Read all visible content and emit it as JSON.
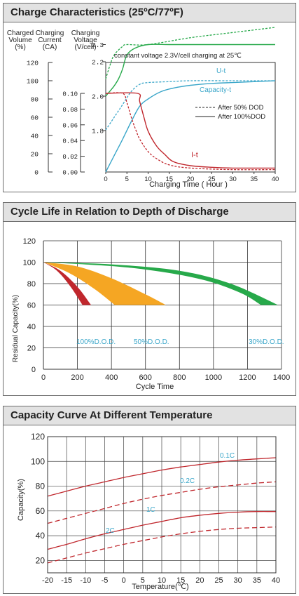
{
  "panels": [
    {
      "title": "Charge Characteristics (25ºC/77ºF)"
    },
    {
      "title": "Cycle Life in Relation to Depth of Discharge"
    },
    {
      "title": "Capacity Curve At Different Temperature"
    }
  ],
  "colors": {
    "green": "#27a94a",
    "teal": "#3aa6c9",
    "red": "#c0272d",
    "orange": "#f5a623",
    "grid": "#333333",
    "dgreen": "#2f8f4e"
  },
  "chart_data": [
    {
      "type": "line",
      "xlabel": "Charging Time ( Hour )",
      "note": "constant voltage 2.3V/cell charging at 25℃",
      "axis_headers": {
        "volume": [
          "Charged",
          "Volume",
          "(%)"
        ],
        "current": [
          "Charging",
          "Current",
          "(CA)"
        ],
        "voltage": [
          "Charging",
          "Voltage",
          "(V/cell)"
        ]
      },
      "x_ticks": [
        "0",
        "5",
        "10",
        "15",
        "20",
        "25",
        "30",
        "35",
        "40"
      ],
      "xlim": [
        0,
        40
      ],
      "volume_ticks": [
        "120",
        "100",
        "80",
        "60",
        "40",
        "20",
        "0"
      ],
      "current_ticks": [
        "0.10",
        "0.08",
        "0.06",
        "0.04",
        "0.02",
        "0.00"
      ],
      "voltage_ticks": [
        "2.3",
        "2.2",
        "2.0",
        "1.8"
      ],
      "curve_labels": {
        "ut": "U-t",
        "capacity": "Capacity-t",
        "it": "I-t"
      },
      "legend": {
        "dashed": "After 50% DOD",
        "solid": "After 100%DOD"
      },
      "series": [
        {
          "name": "U-t",
          "style": "solid",
          "x": [
            0,
            1,
            2,
            3,
            4,
            5,
            7,
            10,
            15,
            20,
            30,
            40
          ],
          "y": [
            2.0,
            2.03,
            2.06,
            2.1,
            2.16,
            2.24,
            2.28,
            2.3,
            2.3,
            2.3,
            2.3,
            2.3
          ]
        },
        {
          "name": "U-t",
          "style": "dashed",
          "x": [
            0,
            1,
            2,
            4,
            5,
            10,
            20,
            30,
            40
          ],
          "y": [
            2.1,
            2.18,
            2.24,
            2.29,
            2.3,
            2.3,
            2.34,
            2.37,
            2.4
          ]
        },
        {
          "name": "Capacity-t",
          "style": "solid",
          "x": [
            0,
            2,
            4,
            6,
            8,
            10,
            13,
            16,
            20,
            25,
            30,
            35,
            40
          ],
          "y": [
            0,
            18,
            36,
            55,
            72,
            80,
            88,
            92,
            95,
            97,
            98,
            99,
            100
          ]
        },
        {
          "name": "Capacity-t",
          "style": "dashed",
          "x": [
            0,
            2,
            4,
            6,
            8,
            10,
            15,
            20,
            30,
            40
          ],
          "y": [
            46,
            60,
            74,
            88,
            96,
            98,
            99,
            100,
            100,
            100
          ]
        },
        {
          "name": "I-t",
          "style": "solid",
          "x": [
            0,
            7.5,
            8,
            9,
            10,
            12,
            14,
            16,
            20,
            25,
            30,
            35,
            40
          ],
          "y": [
            0.1,
            0.1,
            0.09,
            0.07,
            0.052,
            0.033,
            0.022,
            0.013,
            0.008,
            0.006,
            0.005,
            0.005,
            0.005
          ]
        },
        {
          "name": "I-t",
          "style": "dashed",
          "x": [
            0,
            4,
            5,
            6,
            7,
            8,
            10,
            12,
            15,
            20,
            30,
            40
          ],
          "y": [
            0.1,
            0.1,
            0.088,
            0.07,
            0.055,
            0.042,
            0.026,
            0.017,
            0.009,
            0.005,
            0.003,
            0.003
          ]
        }
      ]
    },
    {
      "type": "area",
      "xlabel": "Cycle Time",
      "ylabel": "Residual Capacity(%)",
      "x_ticks": [
        0,
        200,
        400,
        600,
        800,
        1000,
        1200,
        1400
      ],
      "y_ticks": [
        0,
        20,
        40,
        60,
        80,
        100,
        120
      ],
      "xlim": [
        0,
        1400
      ],
      "ylim": [
        0,
        120
      ],
      "series": [
        {
          "name": "100%D.O.D.",
          "upper": [
            [
              0,
              100
            ],
            [
              100,
              92
            ],
            [
              200,
              77
            ],
            [
              280,
              60
            ]
          ],
          "lower": [
            [
              0,
              100
            ],
            [
              80,
              92
            ],
            [
              160,
              77
            ],
            [
              230,
              60
            ]
          ]
        },
        {
          "name": "50%D.O.D.",
          "upper": [
            [
              0,
              100
            ],
            [
              200,
              96
            ],
            [
              400,
              85
            ],
            [
              600,
              70
            ],
            [
              720,
              60
            ]
          ],
          "lower": [
            [
              0,
              100
            ],
            [
              150,
              90
            ],
            [
              300,
              75
            ],
            [
              420,
              60
            ]
          ]
        },
        {
          "name": "30%D.O.D.",
          "upper": [
            [
              0,
              100
            ],
            [
              400,
              98
            ],
            [
              800,
              92
            ],
            [
              1100,
              80
            ],
            [
              1380,
              60
            ]
          ],
          "lower": [
            [
              0,
              100
            ],
            [
              500,
              95
            ],
            [
              900,
              85
            ],
            [
              1150,
              72
            ],
            [
              1280,
              60
            ]
          ]
        }
      ]
    },
    {
      "type": "line",
      "xlabel": "Temperature(℃)",
      "ylabel": "Capacity(%)",
      "x_ticks": [
        -20,
        -15,
        -10,
        -5,
        0,
        5,
        10,
        15,
        20,
        25,
        30,
        35,
        40
      ],
      "y_ticks": [
        20,
        40,
        60,
        80,
        100,
        120
      ],
      "xlim": [
        -20,
        40
      ],
      "ylim": [
        10,
        120
      ],
      "series": [
        {
          "name": "0.1C",
          "style": "solid",
          "x": [
            -20,
            -15,
            -10,
            -5,
            0,
            5,
            10,
            15,
            20,
            25,
            30,
            35,
            40
          ],
          "y": [
            72,
            76,
            80,
            83.5,
            87,
            90,
            93,
            95.5,
            97.5,
            99.5,
            101,
            102,
            103
          ]
        },
        {
          "name": "0.2C",
          "style": "dashed",
          "x": [
            -20,
            -15,
            -10,
            -5,
            0,
            5,
            10,
            15,
            20,
            25,
            30,
            35,
            40
          ],
          "y": [
            50,
            54,
            58,
            62,
            66,
            69.5,
            72.5,
            75,
            77.5,
            79.5,
            81,
            82.5,
            83.5
          ]
        },
        {
          "name": "1C",
          "style": "solid",
          "x": [
            -20,
            -15,
            -10,
            -5,
            0,
            5,
            10,
            15,
            20,
            25,
            30,
            35,
            40
          ],
          "y": [
            29,
            33,
            37.5,
            41.5,
            45,
            48.5,
            51.5,
            54.5,
            56.5,
            58,
            59,
            59.5,
            59.5
          ]
        },
        {
          "name": "2C",
          "style": "dashed",
          "x": [
            -20,
            -15,
            -10,
            -5,
            0,
            5,
            10,
            15,
            20,
            25,
            30,
            35,
            40
          ],
          "y": [
            18,
            22,
            26,
            29.5,
            33,
            36,
            39,
            41.5,
            43.5,
            45,
            46,
            46.5,
            47
          ]
        }
      ],
      "curve_labels": {
        "c01": "0.1C",
        "c02": "0.2C",
        "c1": "1C",
        "c2": "2C"
      }
    }
  ]
}
